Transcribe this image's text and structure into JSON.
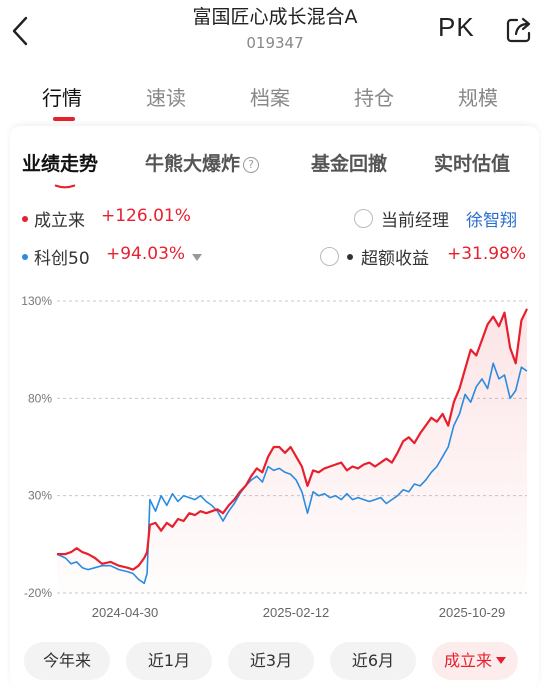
{
  "header": {
    "fund_name": "富国匠心成长混合A",
    "fund_code": "019347",
    "pk_label": "PK"
  },
  "main_tabs": [
    {
      "label": "行情",
      "active": true
    },
    {
      "label": "速读",
      "active": false
    },
    {
      "label": "档案",
      "active": false
    },
    {
      "label": "持仓",
      "active": false
    },
    {
      "label": "规模",
      "active": false
    }
  ],
  "sub_tabs": [
    {
      "label": "业绩走势",
      "active": true
    },
    {
      "label": "牛熊大爆炸",
      "active": false
    },
    {
      "label": "基金回撤",
      "active": false
    },
    {
      "label": "实时估值",
      "active": false
    }
  ],
  "legend": {
    "fund": {
      "label": "成立来",
      "value": "+126.01%",
      "color": "#e8202e"
    },
    "benchmark": {
      "label": "科创50",
      "value": "+94.03%",
      "color": "#2a8be0"
    },
    "manager": {
      "label": "当前经理",
      "name": "徐智翔"
    },
    "excess": {
      "label": "超额收益",
      "value": "+31.98%",
      "color": "#333333"
    }
  },
  "colors": {
    "accent_red": "#e8202e",
    "benchmark_blue": "#2a8be0",
    "manager_blue": "#2b6fd1"
  },
  "chart_data": {
    "type": "line",
    "x_ticks": [
      "2024-04-30",
      "2025-02-12",
      "2025-10-29"
    ],
    "y_ticks": [
      "130%",
      "80%",
      "30%",
      "-20%"
    ],
    "ylim": [
      -20,
      130
    ],
    "series": [
      {
        "name": "成立来",
        "color": "#e8202e",
        "values": [
          [
            0,
            0
          ],
          [
            6,
            0
          ],
          [
            10,
            1
          ],
          [
            14,
            3
          ],
          [
            18,
            1
          ],
          [
            22,
            0
          ],
          [
            27,
            -2
          ],
          [
            32,
            -5
          ],
          [
            38,
            -4
          ],
          [
            44,
            -6
          ],
          [
            50,
            -7
          ],
          [
            54,
            -8
          ],
          [
            58,
            -6
          ],
          [
            62,
            -2
          ],
          [
            64,
            1
          ],
          [
            66,
            15
          ],
          [
            70,
            16
          ],
          [
            74,
            12
          ],
          [
            78,
            16
          ],
          [
            82,
            14
          ],
          [
            86,
            18
          ],
          [
            90,
            17
          ],
          [
            94,
            21
          ],
          [
            98,
            20
          ],
          [
            102,
            22
          ],
          [
            106,
            21
          ],
          [
            110,
            22
          ],
          [
            114,
            23
          ],
          [
            118,
            21
          ],
          [
            122,
            25
          ],
          [
            126,
            28
          ],
          [
            130,
            32
          ],
          [
            134,
            35
          ],
          [
            138,
            40
          ],
          [
            142,
            44
          ],
          [
            146,
            42
          ],
          [
            150,
            50
          ],
          [
            154,
            55
          ],
          [
            158,
            55
          ],
          [
            162,
            52
          ],
          [
            166,
            55
          ],
          [
            170,
            50
          ],
          [
            174,
            45
          ],
          [
            178,
            35
          ],
          [
            182,
            43
          ],
          [
            186,
            42
          ],
          [
            190,
            44
          ],
          [
            194,
            45
          ],
          [
            198,
            46
          ],
          [
            202,
            47
          ],
          [
            206,
            43
          ],
          [
            210,
            45
          ],
          [
            214,
            44
          ],
          [
            218,
            46
          ],
          [
            222,
            47
          ],
          [
            226,
            45
          ],
          [
            230,
            47
          ],
          [
            234,
            49
          ],
          [
            238,
            47
          ],
          [
            242,
            52
          ],
          [
            246,
            58
          ],
          [
            250,
            60
          ],
          [
            254,
            57
          ],
          [
            258,
            62
          ],
          [
            262,
            66
          ],
          [
            266,
            70
          ],
          [
            270,
            68
          ],
          [
            274,
            72
          ],
          [
            278,
            66
          ],
          [
            282,
            78
          ],
          [
            286,
            85
          ],
          [
            290,
            95
          ],
          [
            294,
            105
          ],
          [
            298,
            102
          ],
          [
            302,
            110
          ],
          [
            306,
            118
          ],
          [
            310,
            122
          ],
          [
            314,
            117
          ],
          [
            318,
            124
          ],
          [
            322,
            106
          ],
          [
            326,
            98
          ],
          [
            330,
            120
          ],
          [
            334,
            126
          ]
        ]
      },
      {
        "name": "科创50",
        "color": "#2a8be0",
        "values": [
          [
            0,
            0
          ],
          [
            6,
            -2
          ],
          [
            10,
            -5
          ],
          [
            14,
            -4
          ],
          [
            18,
            -7
          ],
          [
            22,
            -8
          ],
          [
            27,
            -7
          ],
          [
            32,
            -6
          ],
          [
            38,
            -6
          ],
          [
            44,
            -8
          ],
          [
            50,
            -9
          ],
          [
            54,
            -10
          ],
          [
            58,
            -13
          ],
          [
            62,
            -15
          ],
          [
            64,
            -10
          ],
          [
            66,
            28
          ],
          [
            70,
            22
          ],
          [
            74,
            30
          ],
          [
            78,
            25
          ],
          [
            82,
            31
          ],
          [
            86,
            27
          ],
          [
            90,
            30
          ],
          [
            94,
            29
          ],
          [
            98,
            28
          ],
          [
            102,
            30
          ],
          [
            106,
            27
          ],
          [
            110,
            25
          ],
          [
            114,
            22
          ],
          [
            118,
            17
          ],
          [
            122,
            22
          ],
          [
            126,
            26
          ],
          [
            130,
            31
          ],
          [
            134,
            35
          ],
          [
            138,
            38
          ],
          [
            142,
            40
          ],
          [
            146,
            37
          ],
          [
            150,
            45
          ],
          [
            154,
            43
          ],
          [
            158,
            44
          ],
          [
            162,
            42
          ],
          [
            166,
            41
          ],
          [
            170,
            38
          ],
          [
            174,
            32
          ],
          [
            178,
            21
          ],
          [
            182,
            32
          ],
          [
            186,
            30
          ],
          [
            190,
            31
          ],
          [
            194,
            29
          ],
          [
            198,
            30
          ],
          [
            202,
            28
          ],
          [
            206,
            31
          ],
          [
            210,
            28
          ],
          [
            214,
            29
          ],
          [
            218,
            28
          ],
          [
            222,
            27
          ],
          [
            226,
            28
          ],
          [
            230,
            29
          ],
          [
            234,
            26
          ],
          [
            238,
            28
          ],
          [
            242,
            30
          ],
          [
            246,
            33
          ],
          [
            250,
            32
          ],
          [
            254,
            36
          ],
          [
            258,
            35
          ],
          [
            262,
            38
          ],
          [
            266,
            42
          ],
          [
            270,
            45
          ],
          [
            274,
            50
          ],
          [
            278,
            55
          ],
          [
            282,
            66
          ],
          [
            286,
            72
          ],
          [
            290,
            82
          ],
          [
            294,
            78
          ],
          [
            298,
            86
          ],
          [
            302,
            90
          ],
          [
            306,
            85
          ],
          [
            310,
            98
          ],
          [
            314,
            90
          ],
          [
            318,
            92
          ],
          [
            322,
            80
          ],
          [
            326,
            84
          ],
          [
            330,
            96
          ],
          [
            334,
            94
          ]
        ]
      }
    ]
  },
  "range_buttons": [
    {
      "label": "今年来",
      "active": false
    },
    {
      "label": "近1月",
      "active": false
    },
    {
      "label": "近3月",
      "active": false
    },
    {
      "label": "近6月",
      "active": false
    },
    {
      "label": "成立来",
      "active": true
    }
  ]
}
